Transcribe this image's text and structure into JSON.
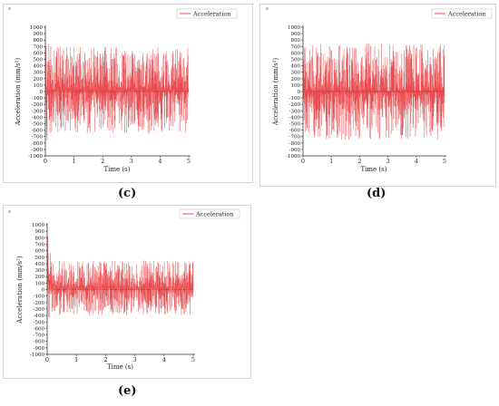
{
  "colors": {
    "signal": "#e8383d",
    "signal_dark": "#b0171c",
    "axis": "#333333",
    "frame": "#d4d4d4"
  },
  "panels": [
    {
      "caption": "(c)"
    },
    {
      "caption": "(d)"
    },
    {
      "caption": "(e)"
    }
  ],
  "chart_data": [
    {
      "type": "line",
      "xlabel": "Time (s)",
      "ylabel": "Acceleration (mm/s²)",
      "xlim": [
        0,
        5
      ],
      "ylim": [
        -1000,
        1000
      ],
      "xticks": [
        0,
        1,
        2,
        3,
        4,
        5
      ],
      "yticks": [
        1000,
        900,
        800,
        700,
        600,
        500,
        400,
        300,
        200,
        100,
        0,
        -100,
        -200,
        -300,
        -400,
        -500,
        -600,
        -700,
        -800,
        -900,
        -1000
      ],
      "legend": "top-right",
      "series": [
        {
          "name": "Acceleration",
          "envelope": {
            "x": [
              0,
              0.05,
              0.2,
              1,
              2,
              3,
              4,
              5
            ],
            "upper": [
              950,
              800,
              700,
              700,
              700,
              700,
              700,
              700
            ],
            "lower": [
              -950,
              -800,
              -650,
              -650,
              -650,
              -650,
              -650,
              -650
            ]
          }
        }
      ]
    },
    {
      "type": "line",
      "xlabel": "Time (s)",
      "ylabel": "Acceleration (mm/s²)",
      "xlim": [
        0,
        5
      ],
      "ylim": [
        -1000,
        1000
      ],
      "xticks": [
        0,
        1,
        2,
        3,
        4,
        5
      ],
      "yticks": [
        1000,
        900,
        800,
        700,
        600,
        500,
        400,
        300,
        200,
        100,
        0,
        -100,
        -200,
        -300,
        -400,
        -500,
        -600,
        -700,
        -800,
        -900,
        -1000
      ],
      "legend": "top-right",
      "series": [
        {
          "name": "Acceleration",
          "envelope": {
            "x": [
              0,
              0.05,
              0.2,
              1,
              2,
              3,
              4,
              5
            ],
            "upper": [
              950,
              850,
              750,
              750,
              750,
              750,
              750,
              750
            ],
            "lower": [
              -950,
              -850,
              -750,
              -750,
              -750,
              -750,
              -750,
              -750
            ]
          }
        }
      ]
    },
    {
      "type": "line",
      "xlabel": "Time (s)",
      "ylabel": "Acceleration (mm/s²)",
      "xlim": [
        0,
        5
      ],
      "ylim": [
        -1000,
        1000
      ],
      "xticks": [
        0,
        1,
        2,
        3,
        4,
        5
      ],
      "yticks": [
        1000,
        900,
        800,
        700,
        600,
        500,
        400,
        300,
        200,
        100,
        0,
        -100,
        -200,
        -300,
        -400,
        -500,
        -600,
        -700,
        -800,
        -900,
        -1000
      ],
      "legend": "top-right",
      "series": [
        {
          "name": "Acceleration",
          "envelope": {
            "x": [
              0,
              0.05,
              0.2,
              0.4,
              1,
              2,
              3,
              4,
              5
            ],
            "upper": [
              950,
              700,
              550,
              450,
              450,
              450,
              450,
              450,
              450
            ],
            "lower": [
              -500,
              -450,
              -400,
              -400,
              -400,
              -400,
              -400,
              -400,
              -400
            ]
          }
        }
      ]
    }
  ]
}
